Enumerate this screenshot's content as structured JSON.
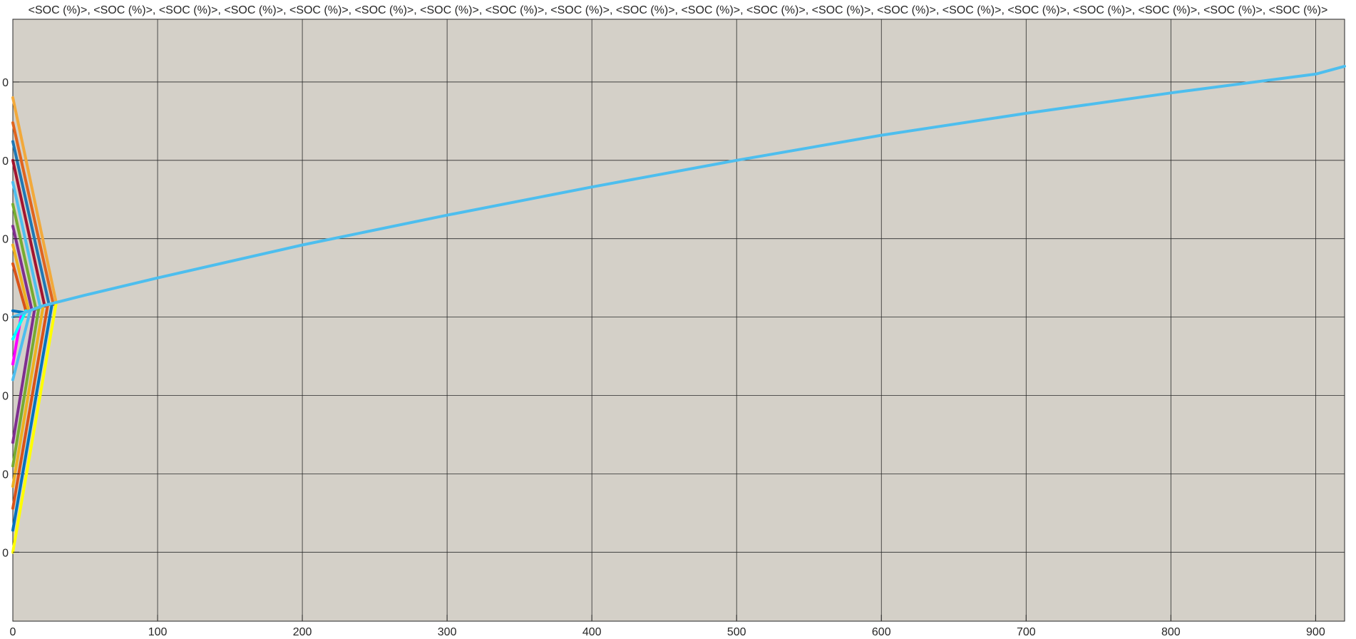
{
  "chart_data": {
    "type": "line",
    "title": "<SOC (%)>, <SOC (%)>, <SOC (%)>, <SOC (%)>, <SOC (%)>, <SOC (%)>, <SOC (%)>, <SOC (%)>, <SOC (%)>, <SOC (%)>, <SOC (%)>, <SOC (%)>, <SOC (%)>, <SOC (%)>, <SOC (%)>, <SOC (%)>, <SOC (%)>, <SOC (%)>, <SOC (%)>, <SOC (%)>",
    "xlabel": "",
    "ylabel": "",
    "xlim": [
      0,
      920
    ],
    "ylim": [
      0.56,
      4.4
    ],
    "xticks": [
      0,
      100,
      200,
      300,
      400,
      500,
      600,
      700,
      800,
      900
    ],
    "xtick_labels": [
      "0",
      "100",
      "200",
      "300",
      "400",
      "500",
      "600",
      "700",
      "800",
      "900"
    ],
    "yticks": [
      1,
      1.5,
      2,
      2.5,
      3,
      3.5,
      4
    ],
    "ytick_labels": [
      "0",
      "0",
      "0",
      "0",
      "0",
      "0",
      "0"
    ],
    "grid": true,
    "plot_background": "#d4d0c8",
    "grid_color": "#2a2a2a",
    "series": [
      {
        "color": "#f2a93b",
        "values": [
          [
            0,
            3.9
          ],
          [
            30,
            2.59
          ]
        ]
      },
      {
        "color": "#e0641e",
        "values": [
          [
            0,
            3.74
          ],
          [
            28,
            2.58
          ]
        ]
      },
      {
        "color": "#1f77b4",
        "values": [
          [
            0,
            3.62
          ],
          [
            25,
            2.58
          ]
        ]
      },
      {
        "color": "#a2142f",
        "values": [
          [
            0,
            3.5
          ],
          [
            22,
            2.57
          ]
        ]
      },
      {
        "color": "#4dbeee",
        "values": [
          [
            0,
            3.36
          ],
          [
            19,
            2.56
          ]
        ]
      },
      {
        "color": "#77ac30",
        "values": [
          [
            0,
            3.22
          ],
          [
            16,
            2.55
          ]
        ]
      },
      {
        "color": "#7e2f8e",
        "values": [
          [
            0,
            3.08
          ],
          [
            13,
            2.55
          ]
        ]
      },
      {
        "color": "#edb120",
        "values": [
          [
            0,
            2.96
          ],
          [
            11,
            2.54
          ]
        ]
      },
      {
        "color": "#d95319",
        "values": [
          [
            0,
            2.84
          ],
          [
            9,
            2.54
          ]
        ]
      },
      {
        "color": "#0072bd",
        "values": [
          [
            0,
            2.54
          ],
          [
            7,
            2.53
          ]
        ]
      },
      {
        "color": "#ff00ff",
        "values": [
          [
            0,
            2.2
          ],
          [
            6,
            2.52
          ]
        ]
      },
      {
        "color": "#00ffff",
        "values": [
          [
            0,
            2.36
          ],
          [
            9,
            2.54
          ]
        ]
      },
      {
        "color": "#4dbeee",
        "values": [
          [
            0,
            2.1
          ],
          [
            12,
            2.54
          ]
        ]
      },
      {
        "color": "#7e2f8e",
        "values": [
          [
            0,
            1.7
          ],
          [
            15,
            2.55
          ]
        ]
      },
      {
        "color": "#77ac30",
        "values": [
          [
            0,
            1.55
          ],
          [
            18,
            2.56
          ]
        ]
      },
      {
        "color": "#edb120",
        "values": [
          [
            0,
            1.42
          ],
          [
            21,
            2.57
          ]
        ]
      },
      {
        "color": "#d95319",
        "values": [
          [
            0,
            1.28
          ],
          [
            24,
            2.57
          ]
        ]
      },
      {
        "color": "#0072bd",
        "values": [
          [
            0,
            1.14
          ],
          [
            27,
            2.58
          ]
        ]
      },
      {
        "color": "#ffff00",
        "values": [
          [
            0,
            1.0
          ],
          [
            30,
            2.59
          ]
        ]
      },
      {
        "color": "#4dbeee",
        "values": [
          [
            0,
            2.5
          ],
          [
            20,
            2.57
          ],
          [
            50,
            2.64
          ],
          [
            100,
            2.75
          ],
          [
            200,
            2.96
          ],
          [
            300,
            3.15
          ],
          [
            400,
            3.33
          ],
          [
            500,
            3.5
          ],
          [
            600,
            3.66
          ],
          [
            700,
            3.8
          ],
          [
            800,
            3.93
          ],
          [
            900,
            4.05
          ],
          [
            920,
            4.1
          ]
        ]
      }
    ]
  }
}
